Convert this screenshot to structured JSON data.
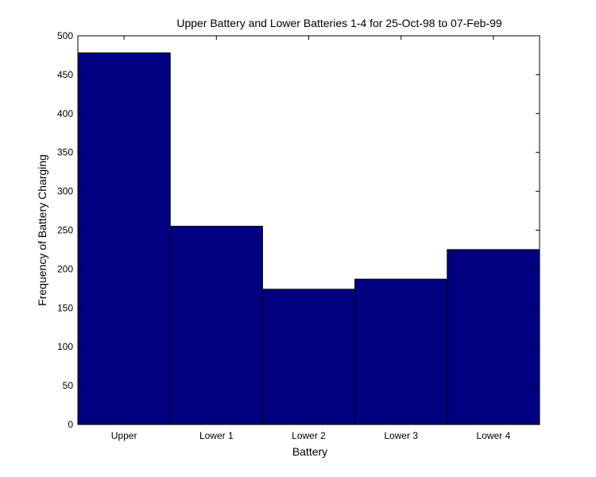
{
  "chart_data": {
    "type": "bar",
    "title": "Upper Battery and Lower Batteries 1-4 for 25-Oct-98 to 07-Feb-99",
    "xlabel": "Battery",
    "ylabel": "Frequency of Battery Charging",
    "categories": [
      "Upper",
      "Lower 1",
      "Lower 2",
      "Lower 3",
      "Lower 4"
    ],
    "values": [
      478,
      255,
      174,
      187,
      225
    ],
    "ylim": [
      0,
      500
    ],
    "yticks": [
      0,
      50,
      100,
      150,
      200,
      250,
      300,
      350,
      400,
      450,
      500
    ],
    "bar_color": "#000080",
    "grid": false,
    "legend": "none"
  }
}
